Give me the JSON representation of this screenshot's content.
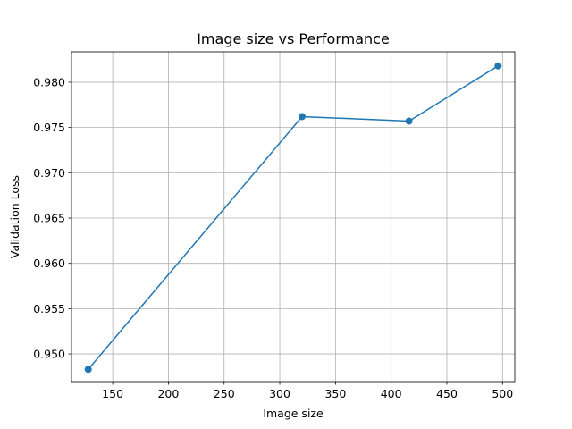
{
  "chart_data": {
    "type": "line",
    "title": "Image size vs Performance",
    "xlabel": "Image size",
    "ylabel": "Validation Loss",
    "xlim": [
      113,
      511
    ],
    "ylim": [
      0.94695,
      0.98335
    ],
    "xticks": [
      150,
      200,
      250,
      300,
      350,
      400,
      450,
      500
    ],
    "yticks": [
      0.95,
      0.955,
      0.96,
      0.965,
      0.97,
      0.975,
      0.98
    ],
    "ytick_labels": [
      "0.950",
      "0.955",
      "0.960",
      "0.965",
      "0.970",
      "0.975",
      "0.980"
    ],
    "grid": true,
    "series": [
      {
        "color": "#1f77b4",
        "marker": "circle",
        "points": [
          {
            "x": 128,
            "y": 0.9483
          },
          {
            "x": 320,
            "y": 0.9762
          },
          {
            "x": 416,
            "y": 0.9757
          },
          {
            "x": 496,
            "y": 0.9818
          }
        ]
      }
    ]
  }
}
